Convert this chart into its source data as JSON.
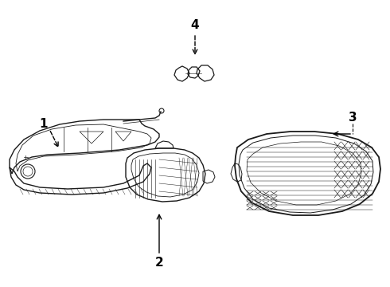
{
  "background_color": "#ffffff",
  "line_color": "#1a1a1a",
  "label_color": "#000000",
  "fig_width": 4.9,
  "fig_height": 3.6,
  "dpi": 100
}
